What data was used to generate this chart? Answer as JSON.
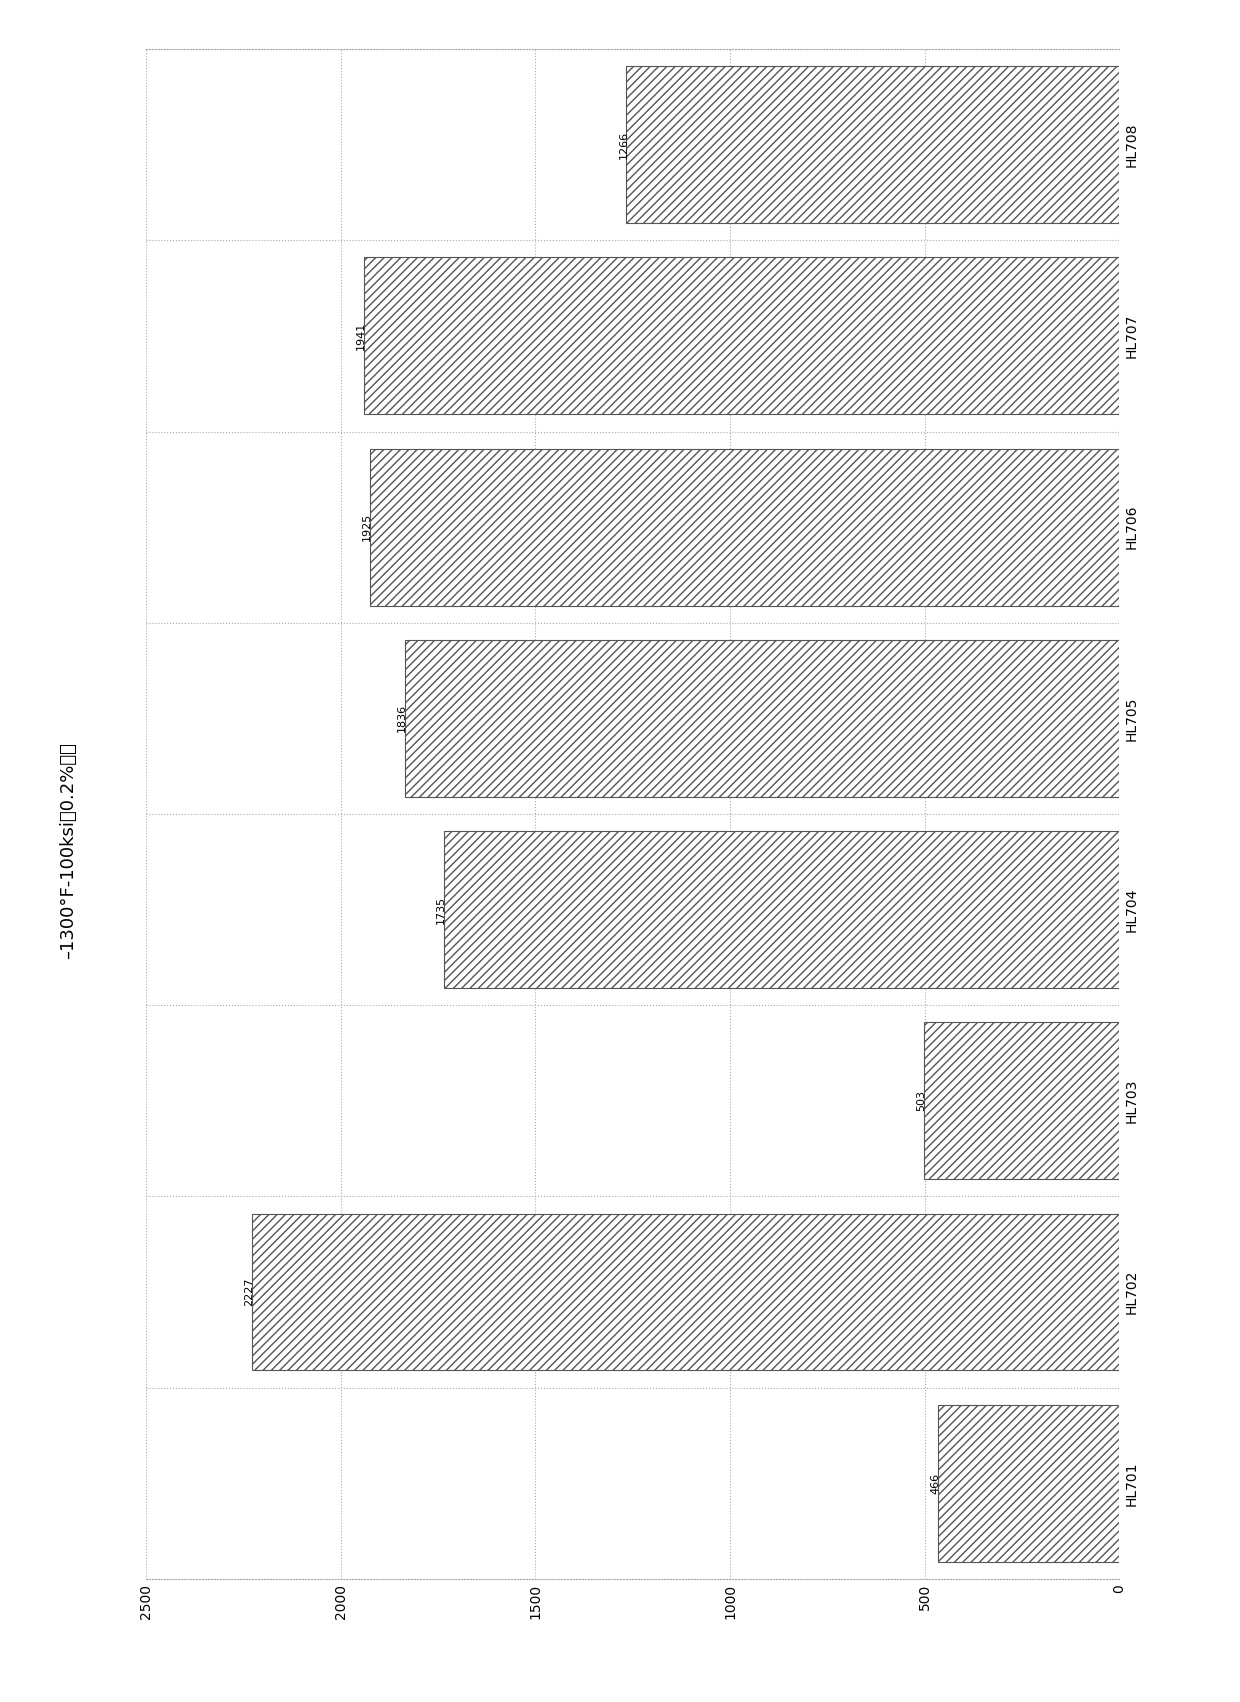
{
  "categories": [
    "HL701",
    "HL702",
    "HL703",
    "HL704",
    "HL705",
    "HL706",
    "HL707",
    "HL708"
  ],
  "values": [
    466,
    2227,
    503,
    1735,
    1836,
    1925,
    1941,
    1266
  ],
  "title": "–1300°F-100ksi下0.2%蜂变",
  "xlim_left": 2500,
  "xlim_right": 0,
  "xticks": [
    2500,
    2000,
    1500,
    1000,
    500,
    0
  ],
  "xtick_labels": [
    "2500",
    "2000",
    "1500",
    "1000",
    "500",
    "0"
  ],
  "bar_color": "white",
  "hatch": "////",
  "hatch_color": "#555555",
  "edge_color": "#555555",
  "background_color": "#ffffff",
  "grid_color": "#aaaaaa",
  "fig_width": 12.4,
  "fig_height": 17.02,
  "dpi": 100,
  "bar_height": 0.82,
  "label_fontsize": 10,
  "tick_fontsize": 10,
  "title_fontsize": 13,
  "value_label_fontsize": 8
}
